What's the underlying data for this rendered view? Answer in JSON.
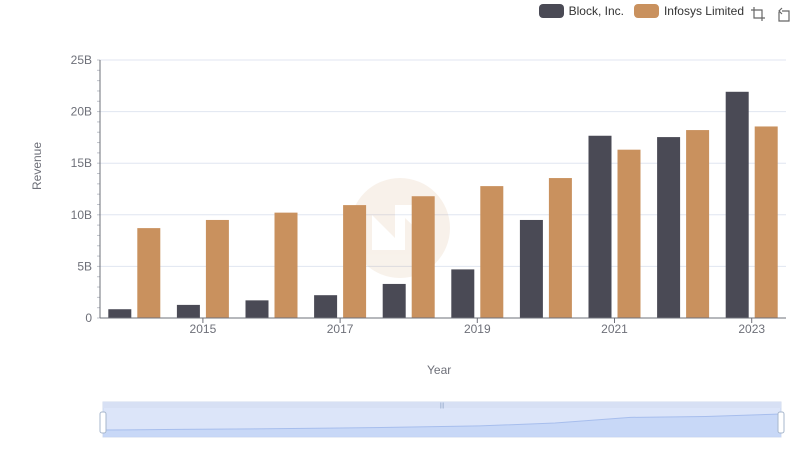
{
  "legend": {
    "items": [
      {
        "label": "Block, Inc.",
        "color": "#4a4a55"
      },
      {
        "label": "Infosys Limited",
        "color": "#c9915e"
      }
    ]
  },
  "toolbox": {
    "zoom_icon": "zoom-icon",
    "restore_icon": "restore-icon"
  },
  "chart_data": {
    "type": "bar",
    "title": "",
    "xlabel": "Year",
    "ylabel": "Revenue",
    "categories": [
      "2014",
      "2015",
      "2016",
      "2017",
      "2018",
      "2019",
      "2020",
      "2021",
      "2022",
      "2023"
    ],
    "x_tick_labels": [
      "2015",
      "2017",
      "2019",
      "2021",
      "2023"
    ],
    "y_tick_labels": [
      "0",
      "5B",
      "10B",
      "15B",
      "20B",
      "25B"
    ],
    "ylim": [
      0,
      25
    ],
    "y_unit": "B",
    "series": [
      {
        "name": "Block, Inc.",
        "color": "#4a4a55",
        "values": [
          0.85,
          1.27,
          1.71,
          2.21,
          3.3,
          4.71,
          9.5,
          17.66,
          17.53,
          21.92
        ]
      },
      {
        "name": "Infosys Limited",
        "color": "#c9915e",
        "values": [
          8.71,
          9.5,
          10.21,
          10.94,
          11.8,
          12.78,
          13.56,
          16.31,
          18.21,
          18.56
        ]
      }
    ],
    "grid": true,
    "legend_position": "top-right",
    "dataZoom": {
      "start": 0,
      "end": 100
    }
  }
}
